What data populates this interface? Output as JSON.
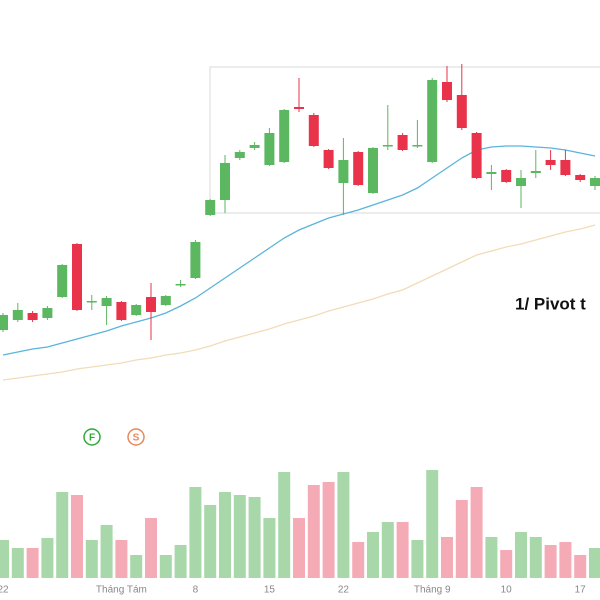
{
  "chart_data": {
    "type": "candlestick",
    "categories": [
      "22",
      null,
      null,
      null,
      null,
      null,
      null,
      null,
      "Tháng Tám",
      null,
      null,
      null,
      null,
      "8",
      null,
      null,
      null,
      null,
      "15",
      null,
      null,
      null,
      null,
      "22",
      null,
      null,
      null,
      null,
      null,
      "Tháng 9",
      null,
      null,
      null,
      null,
      "10",
      null,
      null,
      null,
      null,
      "17",
      null
    ],
    "open": [
      70,
      80,
      87,
      82,
      103,
      156,
      98,
      94,
      98,
      85,
      103,
      95,
      115,
      122,
      185,
      200,
      242,
      252,
      235,
      238,
      293,
      285,
      250,
      217,
      248,
      207,
      254,
      265,
      254,
      238,
      318,
      305,
      267,
      226,
      230,
      214,
      227,
      240,
      240,
      225,
      214
    ],
    "high": [
      87,
      97,
      89,
      94,
      136,
      157,
      105,
      104,
      99,
      96,
      117,
      105,
      120,
      160,
      201,
      245,
      250,
      258,
      272,
      291,
      322,
      287,
      251,
      262,
      249,
      253,
      295,
      267,
      280,
      322,
      334,
      336,
      268,
      235,
      231,
      230,
      250,
      250,
      250,
      226,
      224
    ],
    "low": [
      68,
      78,
      78,
      80,
      102,
      89,
      90,
      75,
      79,
      84,
      60,
      94,
      113,
      121,
      184,
      187,
      240,
      250,
      234,
      237,
      288,
      253,
      231,
      185,
      214,
      206,
      250,
      249,
      252,
      237,
      298,
      270,
      221,
      210,
      217,
      192,
      222,
      230,
      224,
      218,
      210
    ],
    "close": [
      85,
      90,
      80,
      92,
      135,
      90,
      99,
      102,
      80,
      95,
      88,
      104,
      116,
      158,
      200,
      237,
      248,
      255,
      267,
      290,
      291,
      254,
      232,
      240,
      215,
      252,
      255,
      250,
      255,
      320,
      300,
      272,
      222,
      228,
      218,
      222,
      229,
      235,
      225,
      220,
      222
    ],
    "volume": [
      38,
      30,
      30,
      40,
      86,
      83,
      38,
      53,
      38,
      23,
      60,
      23,
      33,
      91,
      73,
      86,
      83,
      81,
      60,
      106,
      60,
      93,
      96,
      106,
      36,
      46,
      56,
      56,
      38,
      108,
      41,
      78,
      91,
      41,
      28,
      46,
      41,
      33,
      36,
      23,
      30
    ],
    "series": [
      {
        "color": "#5ab4dc",
        "values": [
          45,
          48,
          51,
          53,
          57,
          61,
          65,
          69,
          74,
          78,
          82,
          87,
          94,
          102,
          112,
          122,
          132,
          142,
          152,
          162,
          170,
          176,
          182,
          186,
          190,
          195,
          200,
          205,
          212,
          222,
          232,
          242,
          250,
          253,
          254,
          254,
          253,
          252,
          250,
          247,
          244
        ]
      },
      {
        "color": "#f2dcb8",
        "values": [
          20,
          22,
          24,
          26,
          28,
          31,
          33,
          35,
          37,
          40,
          42,
          45,
          47,
          50,
          54,
          59,
          63,
          67,
          71,
          76,
          80,
          84,
          89,
          93,
          97,
          101,
          106,
          110,
          117,
          124,
          131,
          138,
          145,
          149,
          153,
          156,
          160,
          164,
          168,
          171,
          175
        ]
      }
    ],
    "up_color": "#5bb760",
    "down_color": "#e8334a",
    "up_volume_color": "#a8d8aa",
    "down_volume_color": "#f5abb6",
    "ylim": [
      0,
      350
    ],
    "volume_lim": [
      0,
      150
    ],
    "annotations": [
      "1/ Pivot t"
    ],
    "markers": [
      {
        "text": "F",
        "color": "#2eaa3a"
      },
      {
        "text": "S",
        "color": "#e8885a"
      }
    ]
  }
}
